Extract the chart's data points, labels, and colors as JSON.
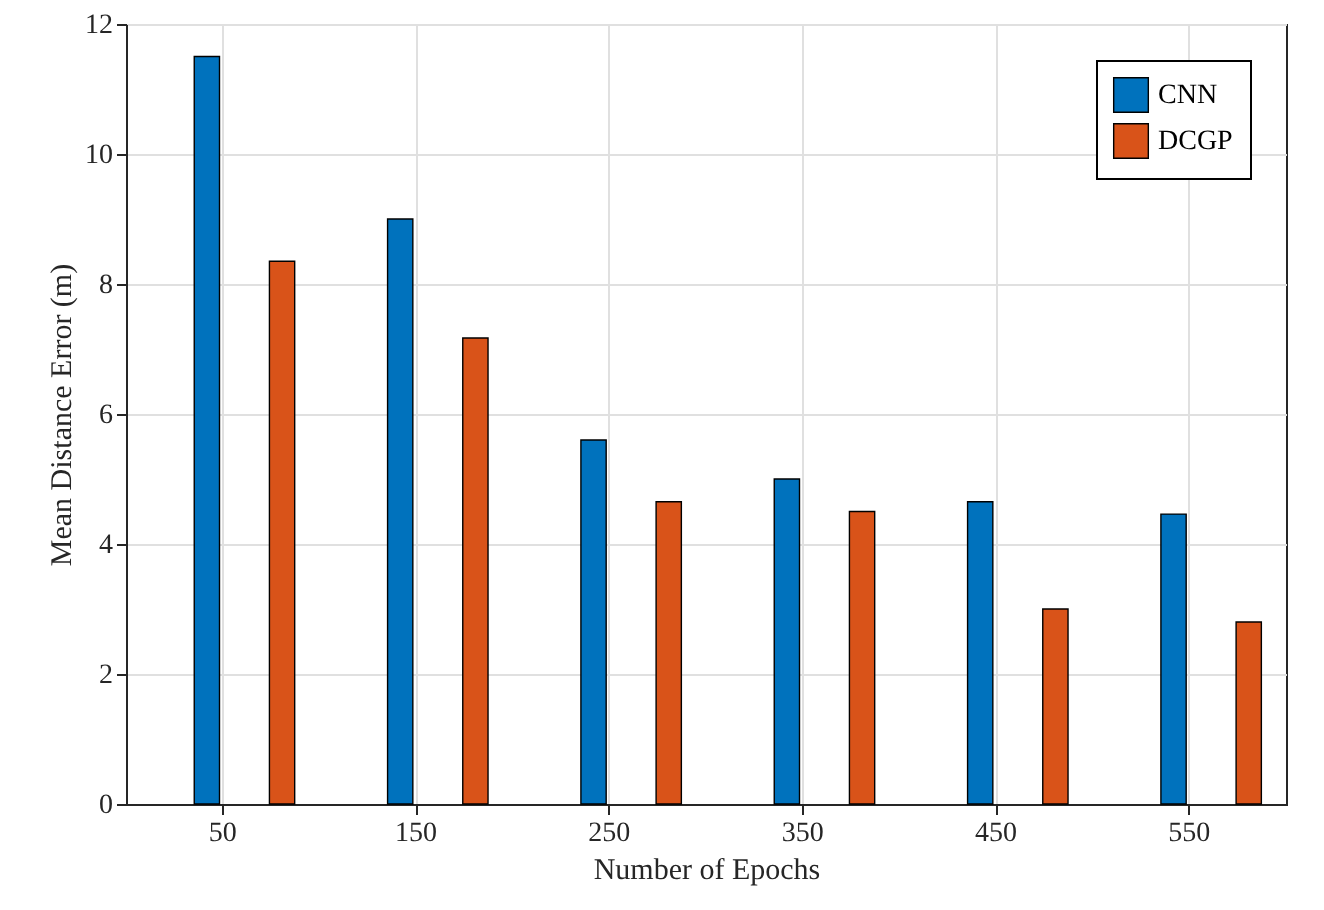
{
  "chart_data": {
    "type": "bar",
    "xlabel": "Number of Epochs",
    "ylabel": "Mean Distance Error (m)",
    "categories": [
      "50",
      "150",
      "250",
      "350",
      "450",
      "550"
    ],
    "series": [
      {
        "name": "CNN",
        "color": "#0072bd",
        "values": [
          11.5,
          9.0,
          5.6,
          5.0,
          4.65,
          4.46
        ]
      },
      {
        "name": "DCGP",
        "color": "#d95319",
        "values": [
          8.35,
          7.17,
          4.65,
          4.5,
          3.0,
          2.8
        ]
      }
    ],
    "ylim": [
      0,
      12
    ],
    "yticks": [
      0,
      2,
      4,
      6,
      8,
      10,
      12
    ],
    "grid": true,
    "legend": "top right"
  }
}
